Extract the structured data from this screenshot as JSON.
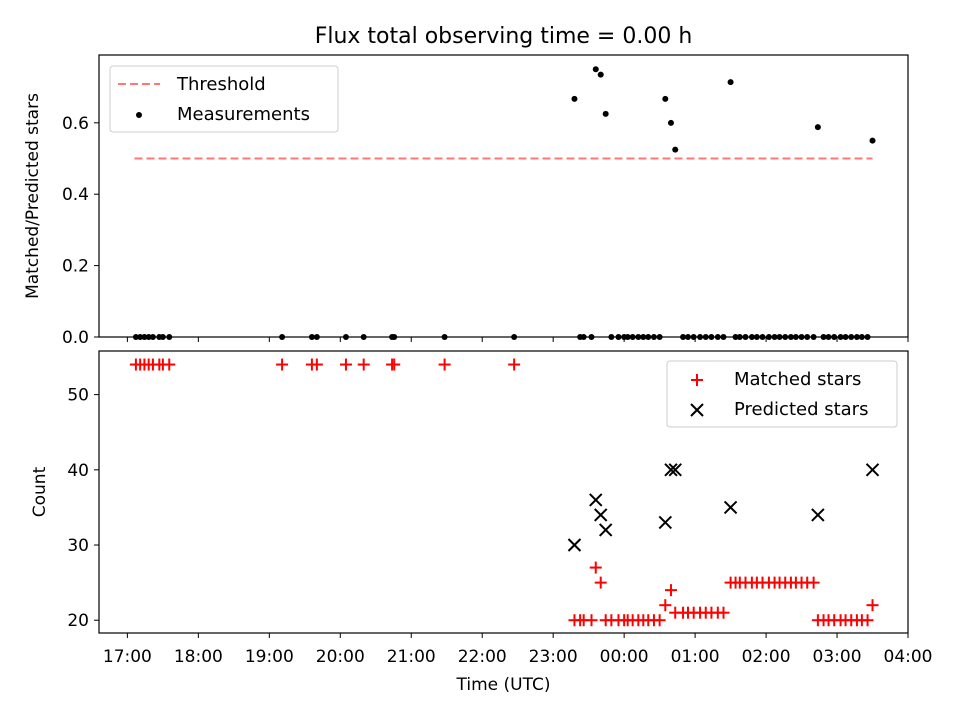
{
  "chart_data": {
    "title": "Flux total observing time = 0.00 h",
    "xlabel": "Time (UTC)",
    "x_ticks": [
      "17:00",
      "18:00",
      "19:00",
      "20:00",
      "21:00",
      "22:00",
      "23:00",
      "00:00",
      "01:00",
      "02:00",
      "03:00",
      "04:00"
    ],
    "xlim_hours": [
      16.6,
      28.0
    ],
    "top": {
      "type": "scatter",
      "ylabel": "Matched/Predicted stars",
      "ylim": [
        0,
        0.79
      ],
      "y_ticks": [
        0.0,
        0.2,
        0.4,
        0.6
      ],
      "y_tick_labels": [
        "0.0",
        "0.2",
        "0.4",
        "0.6"
      ],
      "legend_position": "top-left",
      "threshold": {
        "name": "Threshold",
        "value": 0.5,
        "x_range": [
          17.1,
          27.5
        ],
        "color": "#ff7777"
      },
      "measurements": {
        "name": "Measurements",
        "color": "#000000",
        "x": [
          17.12,
          17.18,
          17.24,
          17.3,
          17.36,
          17.45,
          17.5,
          17.59,
          19.18,
          19.6,
          19.67,
          20.08,
          20.33,
          20.73,
          20.76,
          21.47,
          22.45,
          23.3,
          23.38,
          23.43,
          23.54,
          23.6,
          23.67,
          23.74,
          23.82,
          23.92,
          24.0,
          24.05,
          24.12,
          24.2,
          24.27,
          24.34,
          24.42,
          24.5,
          24.58,
          24.66,
          24.72,
          24.83,
          24.9,
          24.98,
          25.07,
          25.15,
          25.23,
          25.32,
          25.4,
          25.5,
          25.57,
          25.63,
          25.71,
          25.8,
          25.87,
          25.95,
          26.04,
          26.12,
          26.19,
          26.27,
          26.35,
          26.42,
          26.5,
          26.58,
          26.67,
          26.73,
          26.81,
          26.88,
          26.96,
          27.05,
          27.12,
          27.2,
          27.28,
          27.35,
          27.43,
          27.5
        ],
        "y": [
          0,
          0,
          0,
          0,
          0,
          0,
          0,
          0,
          0,
          0,
          0,
          0,
          0,
          0,
          0,
          0,
          0,
          0.667,
          0,
          0,
          0,
          0.75,
          0.735,
          0.625,
          0,
          0,
          0,
          0,
          0,
          0,
          0,
          0,
          0,
          0,
          0.667,
          0.6,
          0.525,
          0,
          0,
          0,
          0,
          0,
          0,
          0,
          0,
          0.714,
          0,
          0,
          0,
          0,
          0,
          0,
          0,
          0,
          0,
          0,
          0,
          0,
          0,
          0,
          0,
          0.588,
          0,
          0,
          0,
          0,
          0,
          0,
          0,
          0,
          0,
          0.55
        ]
      }
    },
    "bottom": {
      "type": "scatter",
      "ylabel": "Count",
      "ylim": [
        18.3,
        55.8
      ],
      "y_ticks": [
        20,
        30,
        40,
        50
      ],
      "y_tick_labels": [
        "20",
        "30",
        "40",
        "50"
      ],
      "legend_position": "top-right",
      "matched": {
        "name": "Matched stars",
        "color": "#ff0000",
        "x": [
          17.12,
          17.18,
          17.24,
          17.3,
          17.36,
          17.45,
          17.5,
          17.59,
          19.18,
          19.6,
          19.67,
          20.08,
          20.33,
          20.73,
          20.76,
          21.47,
          22.45,
          23.3,
          23.38,
          23.43,
          23.54,
          23.6,
          23.67,
          23.74,
          23.82,
          23.92,
          24.0,
          24.05,
          24.12,
          24.2,
          24.27,
          24.34,
          24.42,
          24.5,
          24.58,
          24.66,
          24.72,
          24.83,
          24.9,
          24.98,
          25.07,
          25.15,
          25.23,
          25.32,
          25.4,
          25.5,
          25.57,
          25.63,
          25.71,
          25.8,
          25.87,
          25.95,
          26.04,
          26.12,
          26.19,
          26.27,
          26.35,
          26.42,
          26.5,
          26.58,
          26.67,
          26.73,
          26.81,
          26.88,
          26.96,
          27.05,
          27.12,
          27.2,
          27.28,
          27.35,
          27.43,
          27.5
        ],
        "y": [
          54,
          54,
          54,
          54,
          54,
          54,
          54,
          54,
          54,
          54,
          54,
          54,
          54,
          54,
          54,
          54,
          54,
          20,
          20,
          20,
          20,
          27,
          25,
          20,
          20,
          20,
          20,
          20,
          20,
          20,
          20,
          20,
          20,
          20,
          22,
          24,
          21,
          21,
          21,
          21,
          21,
          21,
          21,
          21,
          21,
          25,
          25,
          25,
          25,
          25,
          25,
          25,
          25,
          25,
          25,
          25,
          25,
          25,
          25,
          25,
          25,
          20,
          20,
          20,
          20,
          20,
          20,
          20,
          20,
          20,
          20,
          22
        ]
      },
      "predicted": {
        "name": "Predicted stars",
        "color": "#000000",
        "x": [
          23.3,
          23.6,
          23.67,
          23.74,
          24.58,
          24.66,
          24.72,
          25.5,
          26.73,
          27.5
        ],
        "y": [
          30,
          36,
          34,
          32,
          33,
          40,
          40,
          35,
          34,
          40
        ]
      }
    }
  }
}
